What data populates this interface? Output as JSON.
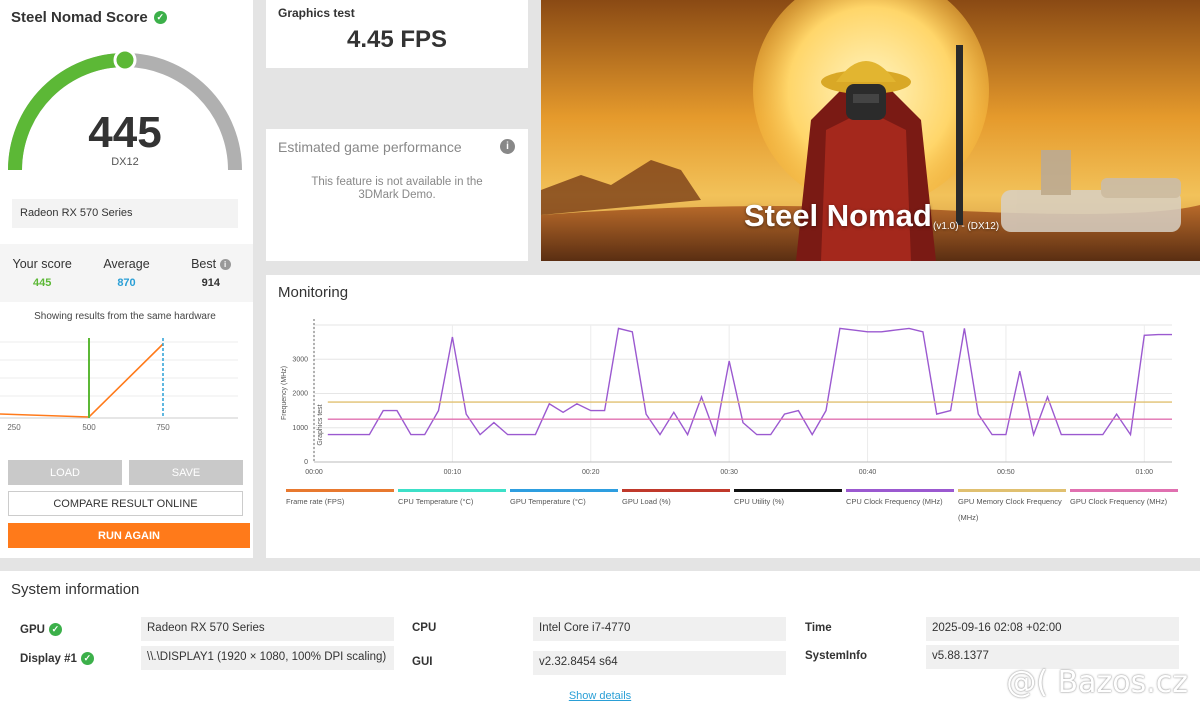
{
  "score_panel": {
    "title": "Steel Nomad Score",
    "score": "445",
    "api": "DX12",
    "gauge_fraction": 0.5,
    "hardware": "Radeon RX 570 Series",
    "stats": {
      "your_label": "Your score",
      "your_value": "445",
      "avg_label": "Average",
      "avg_value": "870",
      "best_label": "Best",
      "best_value": "914"
    },
    "showing": "Showing results from the same hardware",
    "dist_chart": {
      "ticks": [
        "250",
        "500",
        "750"
      ]
    },
    "buttons": {
      "load": "LOAD",
      "save": "SAVE",
      "compare": "COMPARE RESULT ONLINE",
      "run": "RUN AGAIN"
    }
  },
  "graphics_test": {
    "label": "Graphics test",
    "value": "4.45 FPS"
  },
  "estimated": {
    "title": "Estimated game performance",
    "text": "This feature is not available in the 3DMark Demo."
  },
  "banner": {
    "title": "Steel Nomad",
    "version": "(v1.0) - (DX12)"
  },
  "monitoring": {
    "title": "Monitoring"
  },
  "chart_data": {
    "type": "line",
    "ylabel": "Frequency (MHz)",
    "ylabel2": "Graphics test",
    "ylim": [
      0,
      4000
    ],
    "y_ticks": [
      "0",
      "1000",
      "2000",
      "3000"
    ],
    "x_ticks": [
      "00:00",
      "00:10",
      "00:20",
      "00:30",
      "00:40",
      "00:50",
      "01:00"
    ],
    "xlim": [
      0,
      62
    ],
    "legend": [
      {
        "name": "Frame rate (FPS)",
        "color": "#e8792f"
      },
      {
        "name": "CPU Temperature (°C)",
        "color": "#3de0c8"
      },
      {
        "name": "GPU Temperature (°C)",
        "color": "#2e9ee0"
      },
      {
        "name": "GPU Load (%)",
        "color": "#c0392b"
      },
      {
        "name": "CPU Utility (%)",
        "color": "#111111"
      },
      {
        "name": "CPU Clock Frequency (MHz)",
        "color": "#9b59d0"
      },
      {
        "name": "GPU Memory Clock Frequency (MHz)",
        "color": "#e0c070"
      },
      {
        "name": "GPU Clock Frequency (MHz)",
        "color": "#e070b0"
      }
    ],
    "series": [
      {
        "name": "CPU Clock Frequency (MHz)",
        "color": "#9b59d0",
        "x": [
          1,
          2,
          3,
          4,
          5,
          6,
          7,
          8,
          9,
          10,
          11,
          12,
          13,
          14,
          15,
          16,
          17,
          18,
          19,
          20,
          21,
          22,
          23,
          24,
          25,
          26,
          27,
          28,
          29,
          30,
          31,
          32,
          33,
          34,
          35,
          36,
          37,
          38,
          39,
          40,
          41,
          42,
          43,
          44,
          45,
          46,
          47,
          48,
          49,
          50,
          51,
          52,
          53,
          54,
          55,
          56,
          57,
          58,
          59,
          60,
          61,
          62
        ],
        "values": [
          800,
          800,
          800,
          800,
          1500,
          1500,
          800,
          800,
          1500,
          3650,
          1400,
          800,
          1150,
          800,
          800,
          800,
          1700,
          1450,
          1700,
          1500,
          1500,
          3900,
          3800,
          1400,
          800,
          1450,
          800,
          1900,
          800,
          2950,
          1150,
          800,
          800,
          1400,
          1500,
          800,
          1500,
          3900,
          3850,
          3800,
          3800,
          3850,
          3900,
          3800,
          1400,
          1500,
          3900,
          1400,
          800,
          800,
          2650,
          800,
          1900,
          800,
          800,
          800,
          800,
          1400,
          800,
          3700,
          3720,
          3720
        ]
      },
      {
        "name": "GPU Memory Clock Frequency (MHz)",
        "color": "#e0c070",
        "x": [
          1,
          62
        ],
        "values": [
          1750,
          1750
        ]
      },
      {
        "name": "GPU Clock Frequency (MHz)",
        "color": "#e070b0",
        "x": [
          1,
          62
        ],
        "values": [
          1250,
          1250
        ]
      }
    ]
  },
  "system_info": {
    "title": "System information",
    "gpu_label": "GPU",
    "gpu_value": "Radeon RX 570 Series",
    "display_label": "Display #1",
    "display_value": "\\\\.\\DISPLAY1 (1920 × 1080, 100% DPI scaling)",
    "cpu_label": "CPU",
    "cpu_value": "Intel Core i7-4770",
    "gui_label": "GUI",
    "gui_value": "v2.32.8454 s64",
    "time_label": "Time",
    "time_value": "2025-09-16 02:08 +02:00",
    "sysinfo_label": "SystemInfo",
    "sysinfo_value": "v5.88.1377",
    "show_details": "Show details"
  },
  "watermark": "@( Bazos.cz",
  "colors": {
    "accent_orange": "#ff7a1a",
    "score_green": "#5cb836",
    "avg_blue": "#2a9fd6",
    "gauge_grey": "#b0b0b0"
  }
}
